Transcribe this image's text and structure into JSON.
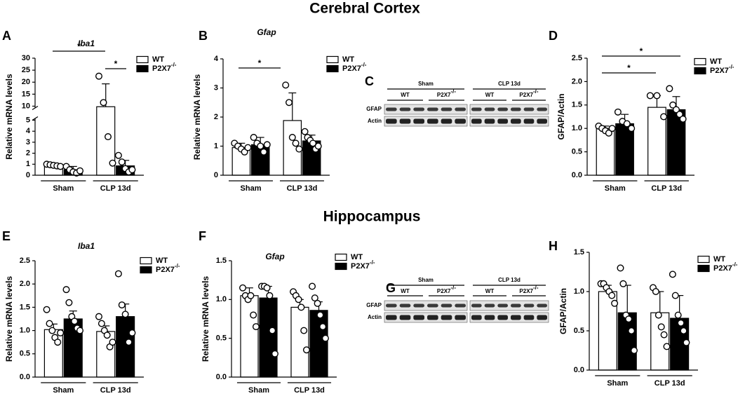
{
  "headings": [
    "Cerebral Cortex",
    "Hippocampus"
  ],
  "chart_data": [
    {
      "type": "bar",
      "panel": "A",
      "title": "Iba1",
      "ylabel": "Relative mRNA levels",
      "categories": [
        "Sham",
        "CLP 13d"
      ],
      "ylim": [
        0,
        30
      ],
      "ybreak": [
        5,
        10
      ],
      "yticks": [
        0,
        1,
        2,
        3,
        4,
        5,
        10,
        15,
        20,
        25,
        30
      ],
      "series": [
        {
          "name": "WT",
          "color": "#ffffff",
          "values": [
            0.95,
            9.8
          ],
          "errors": [
            0.15,
            9.5
          ],
          "points": [
            [
              1.0,
              0.95,
              0.9,
              0.85,
              0.8
            ],
            [
              22.5,
              11.5,
              3.5,
              1.1
            ]
          ]
        },
        {
          "name": "P2X7",
          "superscript": "-/-",
          "color": "#000000",
          "values": [
            0.5,
            0.85
          ],
          "errors": [
            0.3,
            0.5
          ],
          "points": [
            [
              0.8,
              0.5,
              0.3,
              0.2,
              0.4
            ],
            [
              1.8,
              1.2,
              0.6,
              0.3,
              0.5
            ]
          ]
        }
      ],
      "annotations": [
        "*",
        "*"
      ]
    },
    {
      "type": "bar",
      "panel": "B",
      "title": "Gfap",
      "ylabel": "Relative mRNA levels",
      "categories": [
        "Sham",
        "CLP 13d"
      ],
      "ylim": [
        0,
        4
      ],
      "yticks": [
        0,
        1,
        2,
        3,
        4
      ],
      "series": [
        {
          "name": "WT",
          "color": "#ffffff",
          "values": [
            0.95,
            1.88
          ],
          "errors": [
            0.15,
            0.95
          ],
          "points": [
            [
              1.1,
              1.0,
              0.9,
              0.8,
              0.95
            ],
            [
              3.1,
              2.5,
              1.3,
              1.1,
              0.9
            ]
          ]
        },
        {
          "name": "P2X7",
          "superscript": "-/-",
          "color": "#000000",
          "values": [
            1.05,
            1.18
          ],
          "errors": [
            0.25,
            0.2
          ],
          "points": [
            [
              1.3,
              1.1,
              1.0,
              0.8,
              1.05
            ],
            [
              1.5,
              1.3,
              1.2,
              1.1,
              0.9,
              1.0
            ]
          ]
        }
      ],
      "annotations": [
        "*"
      ]
    },
    {
      "type": "bar",
      "panel": "D",
      "ylabel": "GFAP/Actin",
      "categories": [
        "Sham",
        "CLP 13d"
      ],
      "ylim": [
        0,
        2.5
      ],
      "yticks": [
        {
          "value": 0,
          "label": "0.0"
        },
        0.5,
        {
          "value": 1,
          "label": "1.0"
        },
        1.5,
        {
          "value": 2,
          "label": "2.0"
        },
        2.5
      ],
      "series": [
        {
          "name": "WT",
          "color": "#ffffff",
          "values": [
            1.0,
            1.45
          ],
          "errors": [
            0.05,
            0.25
          ],
          "points": [
            [
              1.05,
              1.0,
              0.95,
              0.9,
              1.0
            ],
            [
              1.7,
              1.7,
              1.25
            ]
          ]
        },
        {
          "name": "P2X7",
          "superscript": "-/-",
          "color": "#000000",
          "values": [
            1.1,
            1.4
          ],
          "errors": [
            0.2,
            0.28
          ],
          "points": [
            [
              1.35,
              1.15,
              1.1,
              1.0
            ],
            [
              1.85,
              1.5,
              1.4,
              1.3,
              1.2
            ]
          ]
        }
      ],
      "annotations": [
        "*",
        "*"
      ]
    },
    {
      "type": "bar",
      "panel": "E",
      "title": "Iba1",
      "ylabel": "Relative mRNA levels",
      "categories": [
        "Sham",
        "CLP 13d"
      ],
      "ylim": [
        0,
        2.5
      ],
      "yticks": [
        {
          "value": 0,
          "label": "0.0"
        },
        0.5,
        {
          "value": 1,
          "label": "1.0"
        },
        1.5,
        {
          "value": 2,
          "label": "2.0"
        },
        2.5
      ],
      "series": [
        {
          "name": "WT",
          "color": "#ffffff",
          "values": [
            1.02,
            0.98
          ],
          "errors": [
            0.12,
            0.12
          ],
          "points": [
            [
              1.45,
              1.15,
              1.0,
              0.85,
              0.75,
              0.95
            ],
            [
              1.3,
              1.15,
              1.0,
              0.9,
              0.65,
              0.75
            ]
          ]
        },
        {
          "name": "P2X7",
          "superscript": "-/-",
          "color": "#000000",
          "values": [
            1.25,
            1.3
          ],
          "errors": [
            0.17,
            0.27
          ],
          "points": [
            [
              1.88,
              1.6,
              1.3,
              1.2,
              1.05,
              1.0
            ],
            [
              2.22,
              1.55,
              1.35,
              0.75,
              0.95
            ]
          ]
        }
      ]
    },
    {
      "type": "bar",
      "panel": "F",
      "title": "Gfap",
      "ylabel": "Relative mRNA levels",
      "categories": [
        "Sham",
        "CLP 13d"
      ],
      "ylim": [
        0,
        1.5
      ],
      "yticks": [
        {
          "value": 0,
          "label": "0.0"
        },
        0.5,
        {
          "value": 1,
          "label": "1.0"
        },
        1.5
      ],
      "series": [
        {
          "name": "WT",
          "color": "#ffffff",
          "values": [
            1.05,
            0.9
          ],
          "errors": [
            0.1,
            0.1
          ],
          "points": [
            [
              1.15,
              1.05,
              1.0,
              1.05,
              0.8,
              0.65
            ],
            [
              1.1,
              1.05,
              1.0,
              0.9,
              0.6,
              0.35
            ]
          ]
        },
        {
          "name": "P2X7",
          "superscript": "-/-",
          "color": "#000000",
          "values": [
            1.02,
            0.86
          ],
          "errors": [
            0.15,
            0.11
          ],
          "points": [
            [
              1.17,
              1.17,
              1.15,
              1.05,
              0.6,
              0.3
            ],
            [
              1.17,
              1.02,
              0.95,
              0.8,
              0.65,
              0.5
            ]
          ]
        }
      ]
    },
    {
      "type": "bar",
      "panel": "H",
      "ylabel": "GFAP/Actin",
      "categories": [
        "Sham",
        "CLP 13d"
      ],
      "ylim": [
        0,
        1.5
      ],
      "yticks": [
        {
          "value": 0,
          "label": "0.0"
        },
        0.5,
        {
          "value": 1,
          "label": "1.0"
        },
        1.5
      ],
      "series": [
        {
          "name": "WT",
          "color": "#ffffff",
          "values": [
            1.0,
            0.73
          ],
          "errors": [
            0.08,
            0.27
          ],
          "points": [
            [
              1.1,
              1.1,
              1.05,
              1.0,
              0.95,
              0.85
            ],
            [
              1.05,
              1.0,
              0.7,
              0.55,
              0.45,
              0.3
            ]
          ]
        },
        {
          "name": "P2X7",
          "superscript": "-/-",
          "color": "#000000",
          "values": [
            0.73,
            0.66
          ],
          "errors": [
            0.35,
            0.29
          ],
          "points": [
            [
              1.3,
              1.1,
              0.7,
              0.65,
              0.5,
              0.25
            ],
            [
              1.22,
              0.95,
              0.7,
              0.6,
              0.5,
              0.35
            ]
          ]
        }
      ]
    }
  ],
  "blots": [
    {
      "panel": "C",
      "groups": [
        "Sham",
        "CLP 13d"
      ],
      "genotypes": [
        {
          "name": "WT"
        },
        {
          "name": "P2X7",
          "superscript": "-/-"
        }
      ],
      "rows": [
        "GFAP",
        "Actin"
      ]
    },
    {
      "panel": "G",
      "groups": [
        "Sham",
        "CLP 13d"
      ],
      "genotypes": [
        {
          "name": "WT"
        },
        {
          "name": "P2X7",
          "superscript": "-/-"
        }
      ],
      "rows": [
        "GFAP",
        "Actin"
      ]
    }
  ]
}
